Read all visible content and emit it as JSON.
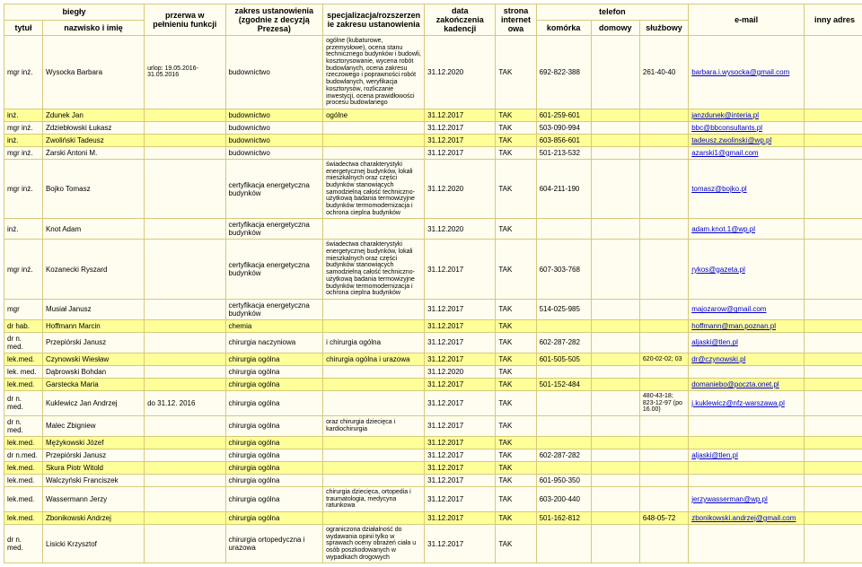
{
  "header": {
    "biegly": "biegły",
    "przerwa": "przerwa w pełnieniu funkcji",
    "zakres": "zakres ustanowienia (zgodnie z decyzją Prezesa)",
    "spec": "specjalizacja/rozszerzenie zakresu ustanowienia",
    "data": "data zakończenia kadencji",
    "strona": "strona internetowa",
    "telefon": "telefon",
    "email": "e-mail",
    "inny": "inny adres",
    "tytul": "tytuł",
    "nazwisko": "nazwisko i imię",
    "komorka": "komórka",
    "domowy": "domowy",
    "sluzbowy": "służbowy"
  },
  "rows": [
    {
      "tytul": "mgr inż.",
      "name": "Wysocka Barbara",
      "przerwa": "urlop: 19.05.2016-31.05.2016",
      "zakres": "budownictwo",
      "spec": "ogólne (kubaturowe, przemysłowe), ocena stanu technicznego budynków i budowli, kosztorysowanie, wycena robót budowlanych, ocena zakresu rzeczowego i poprawności robót budowlanych, weryfikacja kosztorysów, rozliczanie inwestycji, ocena prawidłowości procesu budowlanego",
      "data": "31.12.2020",
      "strona": "TAK",
      "kom": "692-822-388",
      "dom": "",
      "sluz": "261-40-40",
      "email": "barbara.i.wysocka@gmail.com",
      "yellow": false
    },
    {
      "tytul": "inż.",
      "name": "Zdunek Jan",
      "przerwa": "",
      "zakres": "budownictwo",
      "spec": "ogólne",
      "data": "31.12.2017",
      "strona": "TAK",
      "kom": "601-259-601",
      "dom": "",
      "sluz": "",
      "email": "janzdunek@interia.pl",
      "yellow": true
    },
    {
      "tytul": "mgr inż.",
      "name": "Zdziebłowski Łukasz",
      "przerwa": "",
      "zakres": "budownictwo",
      "spec": "",
      "data": "31.12.2017",
      "strona": "TAK",
      "kom": "503-090-994",
      "dom": "",
      "sluz": "",
      "email": "bbc@bbconsultants.pl",
      "yellow": false
    },
    {
      "tytul": "inż.",
      "name": "Zwoliński Tadeusz",
      "przerwa": "",
      "zakres": "budownictwo",
      "spec": "",
      "data": "31.12.2017",
      "strona": "TAK",
      "kom": "603-856-601",
      "dom": "",
      "sluz": "",
      "email": "tadeusz.zwolinski@wp.pl",
      "yellow": true
    },
    {
      "tytul": "mgr inż.",
      "name": "Żarski Antoni M.",
      "przerwa": "",
      "zakres": "budownictwo",
      "spec": "",
      "data": "31.12.2017",
      "strona": "TAK",
      "kom": "501-213-532",
      "dom": "",
      "sluz": "",
      "email": "azarski1@gmail.com",
      "yellow": false
    },
    {
      "tytul": "mgr inż.",
      "name": "Bojko Tomasz",
      "przerwa": "",
      "zakres": "certyfikacja energetyczna budynków",
      "spec": "świadectwa charakterystyki energetycznej budynków, lokali mieszkalnych oraz części budynków stanowiących samodzielną całość techniczno-użytkową badania termowizyjne budynków termomodernizacja i ochrona cieplna budynków",
      "data": "31.12.2020",
      "strona": "TAK",
      "kom": "604-211-190",
      "dom": "",
      "sluz": "",
      "email": "tomasz@bojko.pl",
      "yellow": false
    },
    {
      "tytul": "inż.",
      "name": "Knot Adam",
      "przerwa": "",
      "zakres": "certyfikacja energetyczna budynków",
      "spec": "",
      "data": "31.12.2020",
      "strona": "TAK",
      "kom": "",
      "dom": "",
      "sluz": "",
      "email": "adam.knot.1@wp.pl",
      "yellow": false
    },
    {
      "tytul": "mgr inż.",
      "name": "Kozanecki Ryszard",
      "przerwa": "",
      "zakres": "certyfikacja energetyczna budynków",
      "spec": "świadectwa charakterystyki energetycznej budynków, lokali mieszkalnych oraz części budynków stanowiących samodzielną całość techniczno-użytkową badania termowizyjne budynków termomodernizacja i ochrona cieplna budynków",
      "data": "31.12.2017",
      "strona": "TAK",
      "kom": "607-303-768",
      "dom": "",
      "sluz": "",
      "email": "rykos@gazeta.pl",
      "yellow": false
    },
    {
      "tytul": "mgr",
      "name": "Musiał Janusz",
      "przerwa": "",
      "zakres": "certyfikacja energetyczna budynków",
      "spec": "",
      "data": "31.12.2017",
      "strona": "TAK",
      "kom": "514-025-985",
      "dom": "",
      "sluz": "",
      "email": "majozarow@gmail.com",
      "yellow": false
    },
    {
      "tytul": "dr hab.",
      "name": "Hoffmann Marcin",
      "przerwa": "",
      "zakres": "chemia",
      "spec": "",
      "data": "31.12.2017",
      "strona": "TAK",
      "kom": "",
      "dom": "",
      "sluz": "",
      "email": "hoffmann@man.poznan.pl",
      "yellow": true
    },
    {
      "tytul": "dr n. med.",
      "name": "Przepiórski Janusz",
      "przerwa": "",
      "zakres": "chirurgia naczyniowa",
      "spec": "i chirurgia ogólna",
      "data": "31.12.2017",
      "strona": "TAK",
      "kom": "602-287-282",
      "dom": "",
      "sluz": "",
      "email": "aljaski@tlen.pl",
      "yellow": false
    },
    {
      "tytul": "lek.med.",
      "name": "Czynowski Wiesław",
      "przerwa": "",
      "zakres": "chirurgia ogólna",
      "spec": "chirurgia ogólna i urazowa",
      "data": "31.12.2017",
      "strona": "TAK",
      "kom": "601-505-505",
      "dom": "",
      "sluz": "620-02-02; 03",
      "email": "dr@czynowski.pl",
      "yellow": true
    },
    {
      "tytul": "lek. med.",
      "name": "Dąbrowski Bohdan",
      "przerwa": "",
      "zakres": "chirurgia ogólna",
      "spec": "",
      "data": "31.12.2020",
      "strona": "TAK",
      "kom": "",
      "dom": "",
      "sluz": "",
      "email": "",
      "yellow": false
    },
    {
      "tytul": "lek.med.",
      "name": "Garstecka Maria",
      "przerwa": "",
      "zakres": "chirurgia ogólna",
      "spec": "",
      "data": "31.12.2017",
      "strona": "TAK",
      "kom": "501-152-484",
      "dom": "",
      "sluz": "",
      "email": "domaniebo@poczta.onet.pl",
      "yellow": true
    },
    {
      "tytul": "dr n. med.",
      "name": "Kuklewicz Jan Andrzej",
      "przerwa": "do 31.12. 2016",
      "zakres": "chirurgia ogólna",
      "spec": "",
      "data": "31.12.2017",
      "strona": "TAK",
      "kom": "",
      "dom": "",
      "sluz": "480-43-18; 823-12-97 (po 16.00)",
      "email": "j.kuklewicz@nfz-warszawa.pl",
      "yellow": false
    },
    {
      "tytul": "dr n. med.",
      "name": "Malec Zbigniew",
      "przerwa": "",
      "zakres": "chirurgia ogólna",
      "spec": "oraz chirurgia dziecięca i kardiochirurgia",
      "data": "31.12.2017",
      "strona": "TAK",
      "kom": "",
      "dom": "",
      "sluz": "",
      "email": "",
      "yellow": false
    },
    {
      "tytul": "lek.med.",
      "name": "Mężykowski Józef",
      "przerwa": "",
      "zakres": "chirurgia ogólna",
      "spec": "",
      "data": "31.12.2017",
      "strona": "TAK",
      "kom": "",
      "dom": "",
      "sluz": "",
      "email": "",
      "yellow": true
    },
    {
      "tytul": "dr n.med.",
      "name": "Przepiórski Janusz",
      "przerwa": "",
      "zakres": "chirurgia ogólna",
      "spec": "",
      "data": "31.12.2017",
      "strona": "TAK",
      "kom": "602-287-282",
      "dom": "",
      "sluz": "",
      "email": "aljaski@tlen.pl",
      "yellow": false
    },
    {
      "tytul": "lek.med.",
      "name": "Skura Piotr Witold",
      "przerwa": "",
      "zakres": "chirurgia ogólna",
      "spec": "",
      "data": "31.12.2017",
      "strona": "TAK",
      "kom": "",
      "dom": "",
      "sluz": "",
      "email": "",
      "yellow": true
    },
    {
      "tytul": "lek.med.",
      "name": "Walczyński Franciszek",
      "przerwa": "",
      "zakres": "chirurgia ogólna",
      "spec": "",
      "data": "31.12.2017",
      "strona": "TAK",
      "kom": "601-950-350",
      "dom": "",
      "sluz": "",
      "email": "",
      "yellow": false
    },
    {
      "tytul": "lek.med.",
      "name": "Wassermann Jerzy",
      "przerwa": "",
      "zakres": "chirurgia ogólna",
      "spec": "chirurgia dziecięca, ortopedia i traumatologia, medycyna ratunkowa",
      "data": "31.12.2017",
      "strona": "TAK",
      "kom": "603-200-440",
      "dom": "",
      "sluz": "",
      "email": "jerzywasserman@wp.pl",
      "yellow": false
    },
    {
      "tytul": "lek.med.",
      "name": "Zbonikowski Andrzej",
      "przerwa": "",
      "zakres": "chirurgia ogólna",
      "spec": "",
      "data": "31.12.2017",
      "strona": "TAK",
      "kom": "501-162-812",
      "dom": "",
      "sluz": "648-05-72",
      "email": "zbonikowski.andrzej@gmail.com",
      "yellow": true
    },
    {
      "tytul": "dr n. med.",
      "name": "Lisicki Krzysztof",
      "przerwa": "",
      "zakres": "chirurgia ortopedyczna i urazowa",
      "spec": "ograniczona działalność do wydawania opinii tylko w sprawach oceny obrażeń ciała u osób poszkodowanych w wypadkach drogowych",
      "data": "31.12.2017",
      "strona": "TAK",
      "kom": "",
      "dom": "",
      "sluz": "",
      "email": "",
      "yellow": false
    }
  ]
}
